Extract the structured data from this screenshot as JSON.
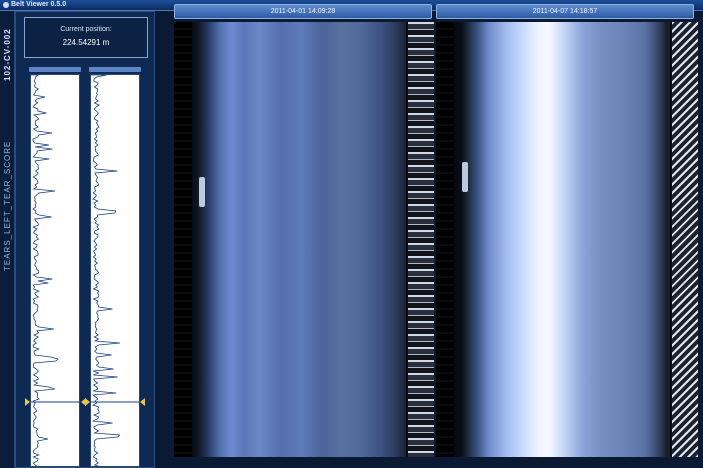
{
  "window": {
    "title": "Belt Viewer 0.5.0"
  },
  "sidebar": {
    "vertical_id": "102-CV-002",
    "vertical_metric": "TEARS_LEFT_TEAR_SCORE"
  },
  "position": {
    "label": "Current position:",
    "value": "224.54291 m"
  },
  "scans": [
    {
      "timestamp": "2011-04-01 14:09:28"
    },
    {
      "timestamp": "2011-04-07 14:18:57"
    }
  ],
  "colors": {
    "background": "#0a1a33",
    "panel": "#0f2a52",
    "header_accent": "#5f8ccf",
    "trace": "#1b3f80",
    "marker": "#e7c447"
  },
  "icons": {
    "app": "app-icon",
    "markers": [
      "position-marker-icon"
    ]
  }
}
